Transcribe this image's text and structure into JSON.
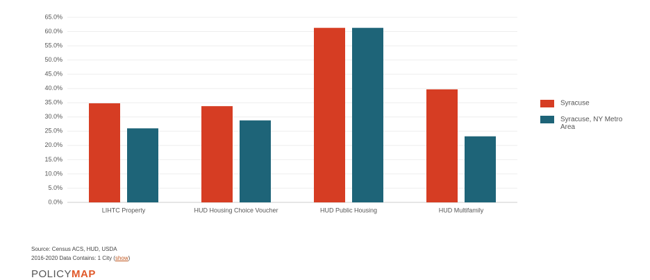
{
  "chart_data": {
    "type": "bar",
    "categories": [
      "LIHTC Property",
      "HUD Housing Choice Voucher",
      "HUD Public Housing",
      "HUD Multifamily"
    ],
    "series": [
      {
        "name": "Syracuse",
        "color": "#d63d23",
        "values": [
          34.8,
          33.8,
          61.3,
          39.7
        ]
      },
      {
        "name": "Syracuse, NY Metro Area",
        "color": "#1e6478",
        "values": [
          26.0,
          28.8,
          61.3,
          23.2
        ]
      }
    ],
    "ylim": [
      0,
      65
    ],
    "yticks": [
      {
        "value": 0,
        "label": "0.0%"
      },
      {
        "value": 5,
        "label": "5.0%"
      },
      {
        "value": 10,
        "label": "10.0%"
      },
      {
        "value": 15,
        "label": "15.0%"
      },
      {
        "value": 20,
        "label": "20.0%"
      },
      {
        "value": 25,
        "label": "25.0%"
      },
      {
        "value": 30,
        "label": "30.0%"
      },
      {
        "value": 35,
        "label": "35.0%"
      },
      {
        "value": 40,
        "label": "40.0%"
      },
      {
        "value": 45,
        "label": "45.0%"
      },
      {
        "value": 50,
        "label": "50.0%"
      },
      {
        "value": 55,
        "label": "55.0%"
      },
      {
        "value": 60,
        "label": "60.0%"
      },
      {
        "value": 65,
        "label": "65.0%"
      }
    ],
    "grid": true,
    "legend": "right"
  },
  "footer": {
    "source": "Source: Census ACS, HUD, USDA",
    "note_prefix": "2016-2020 Data Contains: 1 City (",
    "note_link": "show",
    "note_suffix": ")",
    "logo_left": "POLICY",
    "logo_right": "MAP"
  }
}
